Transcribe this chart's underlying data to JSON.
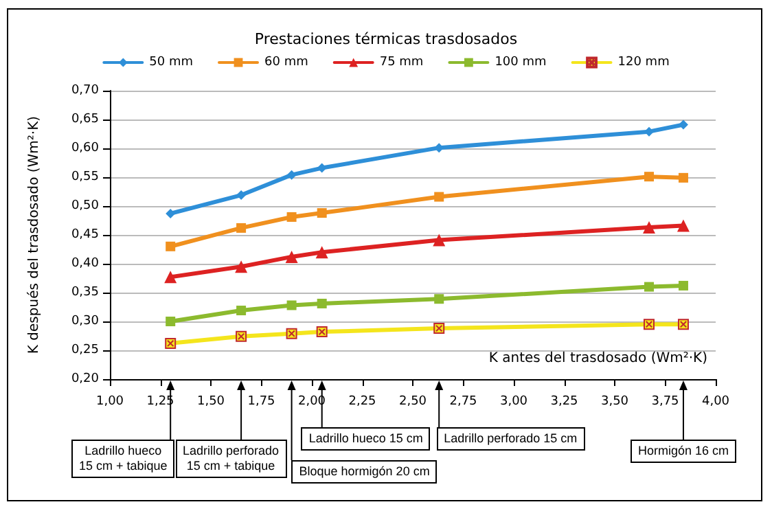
{
  "chart_data": {
    "type": "line",
    "title": "Prestaciones térmicas trasdosados",
    "xlabel": "K antes del trasdosado (Wm²·K)",
    "ylabel": "K después del trasdosado (Wm²·K)",
    "x": [
      1.3,
      1.65,
      1.9,
      2.05,
      2.63,
      3.67,
      3.84
    ],
    "series": [
      {
        "name": "50 mm",
        "color": "#2e8fd8",
        "marker": "diamond",
        "values": [
          0.487,
          0.519,
          0.554,
          0.566,
          0.601,
          0.629,
          0.641
        ]
      },
      {
        "name": "60 mm",
        "color": "#f0901e",
        "marker": "square",
        "values": [
          0.43,
          0.462,
          0.481,
          0.488,
          0.516,
          0.551,
          0.549
        ]
      },
      {
        "name": "75 mm",
        "color": "#dd2222",
        "marker": "triangle",
        "values": [
          0.377,
          0.395,
          0.412,
          0.42,
          0.441,
          0.463,
          0.466
        ]
      },
      {
        "name": "100 mm",
        "color": "#8cba2e",
        "marker": "square",
        "values": [
          0.3,
          0.319,
          0.328,
          0.331,
          0.339,
          0.36,
          0.362
        ]
      },
      {
        "name": "120 mm",
        "color": "#f4e51c",
        "marker": "cross",
        "values": [
          0.262,
          0.274,
          0.279,
          0.282,
          0.288,
          0.295,
          0.295
        ]
      }
    ],
    "xlim": [
      1.0,
      4.0
    ],
    "xticks": [
      {
        "value": 1.0,
        "label": "1,00"
      },
      {
        "value": 1.25,
        "label": "1,25"
      },
      {
        "value": 1.5,
        "label": "1,50"
      },
      {
        "value": 1.75,
        "label": "1,75"
      },
      {
        "value": 2.0,
        "label": "2,00"
      },
      {
        "value": 2.25,
        "label": "2,25"
      },
      {
        "value": 2.5,
        "label": "2,50"
      },
      {
        "value": 2.75,
        "label": "2,75"
      },
      {
        "value": 3.0,
        "label": "3,00"
      },
      {
        "value": 3.25,
        "label": "3,25"
      },
      {
        "value": 3.5,
        "label": "3,50"
      },
      {
        "value": 3.75,
        "label": "3,75"
      },
      {
        "value": 4.0,
        "label": "4,00"
      }
    ],
    "ylim": [
      0.2,
      0.7
    ],
    "yticks": [
      {
        "value": 0.2,
        "label": "0,20"
      },
      {
        "value": 0.25,
        "label": "0,25"
      },
      {
        "value": 0.3,
        "label": "0,30"
      },
      {
        "value": 0.35,
        "label": "0,35"
      },
      {
        "value": 0.4,
        "label": "0,40"
      },
      {
        "value": 0.45,
        "label": "0,45"
      },
      {
        "value": 0.5,
        "label": "0,50"
      },
      {
        "value": 0.55,
        "label": "0,55"
      },
      {
        "value": 0.6,
        "label": "0,60"
      },
      {
        "value": 0.65,
        "label": "0,65"
      },
      {
        "value": 0.7,
        "label": "0,70"
      }
    ],
    "grid": "y",
    "legend": "top",
    "line_style": "solid",
    "annotations": [
      "Ladrillo hueco\n15 cm + tabique",
      "Ladrillo perforado\n15 cm + tabique",
      "Bloque hormigón 20 cm",
      "Ladrillo hueco 15 cm",
      "Ladrillo perforado 15 cm",
      "Hormigón 16 cm"
    ]
  }
}
